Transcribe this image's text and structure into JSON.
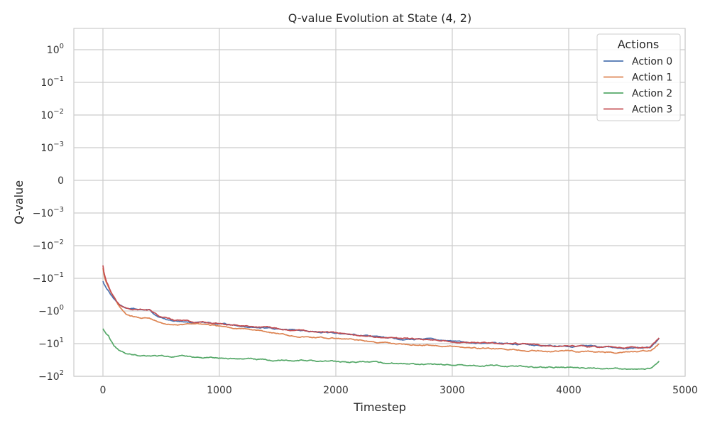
{
  "chart_data": {
    "type": "line",
    "title": "Q-value Evolution at State (4, 2)",
    "xlabel": "Timestep",
    "ylabel": "Q-value",
    "xlim": [
      -250,
      5000
    ],
    "yscale": "symlog",
    "ylim": [
      -100,
      1
    ],
    "grid": true,
    "legend": {
      "title": "Actions",
      "placement": "top-right"
    },
    "x_ticks": [
      0,
      1000,
      2000,
      3000,
      4000,
      5000
    ],
    "y_ticks": [
      {
        "value": 1,
        "base": "10",
        "exp": "0",
        "sign": ""
      },
      {
        "value": 0.1,
        "base": "10",
        "exp": "−1",
        "sign": ""
      },
      {
        "value": 0.01,
        "base": "10",
        "exp": "−2",
        "sign": ""
      },
      {
        "value": 0.001,
        "base": "10",
        "exp": "−3",
        "sign": ""
      },
      {
        "value": 0,
        "base": "0",
        "exp": "",
        "sign": ""
      },
      {
        "value": -0.001,
        "base": "10",
        "exp": "−3",
        "sign": "−"
      },
      {
        "value": -0.01,
        "base": "10",
        "exp": "−2",
        "sign": "−"
      },
      {
        "value": -0.1,
        "base": "10",
        "exp": "−1",
        "sign": "−"
      },
      {
        "value": -1,
        "base": "10",
        "exp": "0",
        "sign": "−"
      },
      {
        "value": -10,
        "base": "10",
        "exp": "1",
        "sign": "−"
      },
      {
        "value": -100,
        "base": "10",
        "exp": "2",
        "sign": "−"
      }
    ],
    "x": [
      0,
      50,
      100,
      150,
      200,
      300,
      400,
      500,
      600,
      700,
      800,
      900,
      1000,
      1200,
      1400,
      1600,
      1800,
      2000,
      2200,
      2400,
      2600,
      2800,
      3000,
      3200,
      3400,
      3600,
      3800,
      4000,
      4200,
      4400,
      4600,
      4700,
      4780
    ],
    "series": [
      {
        "name": "Action 0",
        "color": "#4c72b0",
        "values": [
          -0.12,
          -0.25,
          -0.45,
          -0.7,
          -0.85,
          -0.9,
          -0.95,
          -1.6,
          -2.0,
          -2.1,
          -2.3,
          -2.4,
          -2.5,
          -2.9,
          -3.3,
          -3.8,
          -4.3,
          -4.8,
          -5.6,
          -6.5,
          -7.3,
          -7.6,
          -8.5,
          -9.4,
          -9.8,
          -10.2,
          -11.5,
          -11.8,
          -12.8,
          -13.2,
          -13.6,
          -13.2,
          -6.5
        ]
      },
      {
        "name": "Action 1",
        "color": "#dd8452",
        "values": [
          -0.05,
          -0.2,
          -0.4,
          -0.8,
          -1.3,
          -1.6,
          -1.7,
          -2.4,
          -2.6,
          -2.6,
          -2.4,
          -2.6,
          -3.0,
          -3.5,
          -4.2,
          -5.5,
          -6.5,
          -7.0,
          -8.0,
          -9.5,
          -10.5,
          -11.0,
          -12.0,
          -13.5,
          -14.5,
          -15.5,
          -17.0,
          -16.5,
          -18.0,
          -18.5,
          -18.0,
          -17.0,
          -10.0
        ]
      },
      {
        "name": "Action 2",
        "color": "#55a868",
        "values": [
          -3.5,
          -6.0,
          -12.0,
          -17.0,
          -21.0,
          -23.0,
          -23.0,
          -24.0,
          -25.0,
          -25.0,
          -26.0,
          -27.0,
          -28.0,
          -29.0,
          -31.0,
          -32.0,
          -34.0,
          -35.0,
          -37.0,
          -39.0,
          -40.0,
          -42.0,
          -44.0,
          -46.0,
          -48.0,
          -50.0,
          -53.0,
          -54.0,
          -56.0,
          -58.0,
          -62.0,
          -60.0,
          -35.0
        ]
      },
      {
        "name": "Action 3",
        "color": "#c44e52",
        "values": [
          -0.04,
          -0.18,
          -0.4,
          -0.7,
          -0.85,
          -0.9,
          -0.95,
          -1.5,
          -1.9,
          -2.0,
          -2.2,
          -2.3,
          -2.4,
          -2.8,
          -3.2,
          -3.7,
          -4.2,
          -4.7,
          -5.5,
          -6.4,
          -7.2,
          -7.5,
          -8.4,
          -9.3,
          -9.7,
          -10.1,
          -11.3,
          -11.7,
          -12.6,
          -13.1,
          -13.5,
          -13.0,
          -6.3
        ]
      }
    ]
  }
}
